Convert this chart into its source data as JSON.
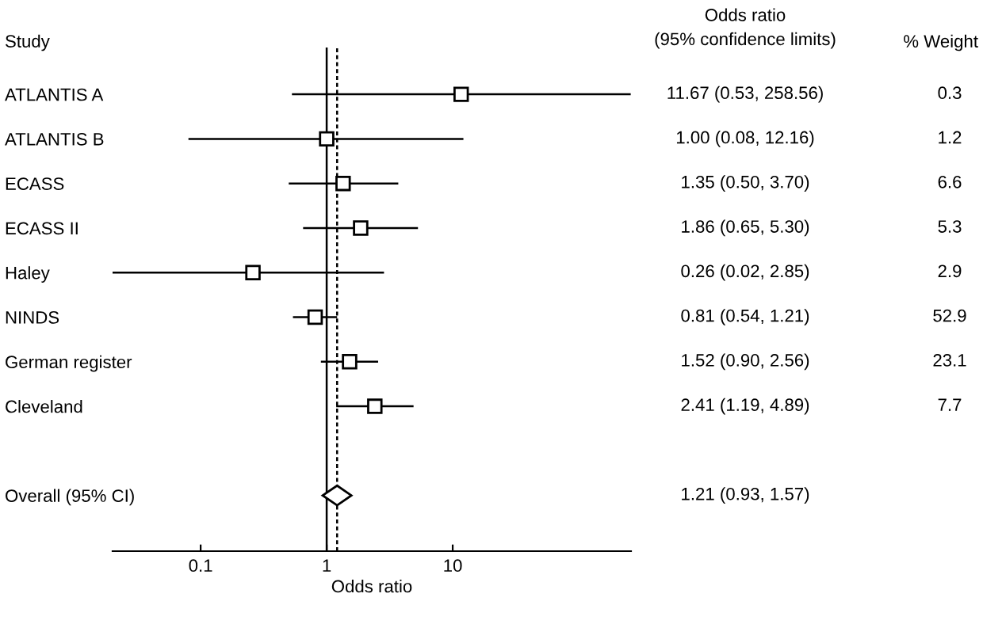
{
  "chart_data": {
    "type": "scatter",
    "orientation": "horizontal",
    "ylabel": "Study",
    "xlabel": "Odds ratio",
    "categories": [
      "ATLANTIS A",
      "ATLANTIS B",
      "ECASS",
      "ECASS II",
      "Haley",
      "NINDS",
      "German register",
      "Cleveland",
      null,
      "Overall (95% CI)"
    ],
    "series": [
      {
        "color": "#000000",
        "marker": "square",
        "values": [
          11.67,
          1.0,
          1.35,
          1.86,
          0.26,
          0.81,
          1.52,
          2.41,
          null,
          null
        ],
        "errors": [
          [
            0.53,
            258.56
          ],
          [
            0.08,
            12.16
          ],
          [
            0.5,
            3.7
          ],
          [
            0.65,
            5.3
          ],
          [
            0.02,
            2.85
          ],
          [
            0.54,
            1.21
          ],
          [
            0.9,
            2.56
          ],
          [
            1.19,
            4.89
          ],
          null,
          null
        ]
      },
      {
        "color": "#000000",
        "marker": "diamond",
        "values": [
          null,
          null,
          null,
          null,
          null,
          null,
          null,
          null,
          null,
          1.21
        ],
        "errors": [
          null,
          null,
          null,
          null,
          null,
          null,
          null,
          null,
          null,
          [
            0.93,
            1.57
          ]
        ]
      }
    ],
    "log": "x",
    "xlim": [
      0.02,
      260
    ],
    "xticks": [
      0.1,
      1,
      10
    ],
    "ref_lines": [
      {
        "axis": "x",
        "value": 1,
        "line_style": "solid",
        "color": "#000000"
      },
      {
        "axis": "x",
        "value": 1.21,
        "line_style": "dashed",
        "color": "#000000"
      }
    ],
    "annotations": [
      "Odds ratio\n(95% confidence limits)",
      "% Weight",
      "11.67 (0.53, 258.56)",
      "1.00 (0.08, 12.16)",
      "1.35 (0.50, 3.70)",
      "1.86 (0.65, 5.30)",
      "0.26 (0.02, 2.85)",
      "0.81 (0.54, 1.21)",
      "1.52 (0.90, 2.56)",
      "2.41 (1.19, 4.89)",
      "1.21 (0.93, 1.57)",
      "0.3",
      "1.2",
      "6.6",
      "5.3",
      "2.9",
      "52.9",
      "23.1",
      "7.7"
    ],
    "grid": false,
    "legend": false
  }
}
